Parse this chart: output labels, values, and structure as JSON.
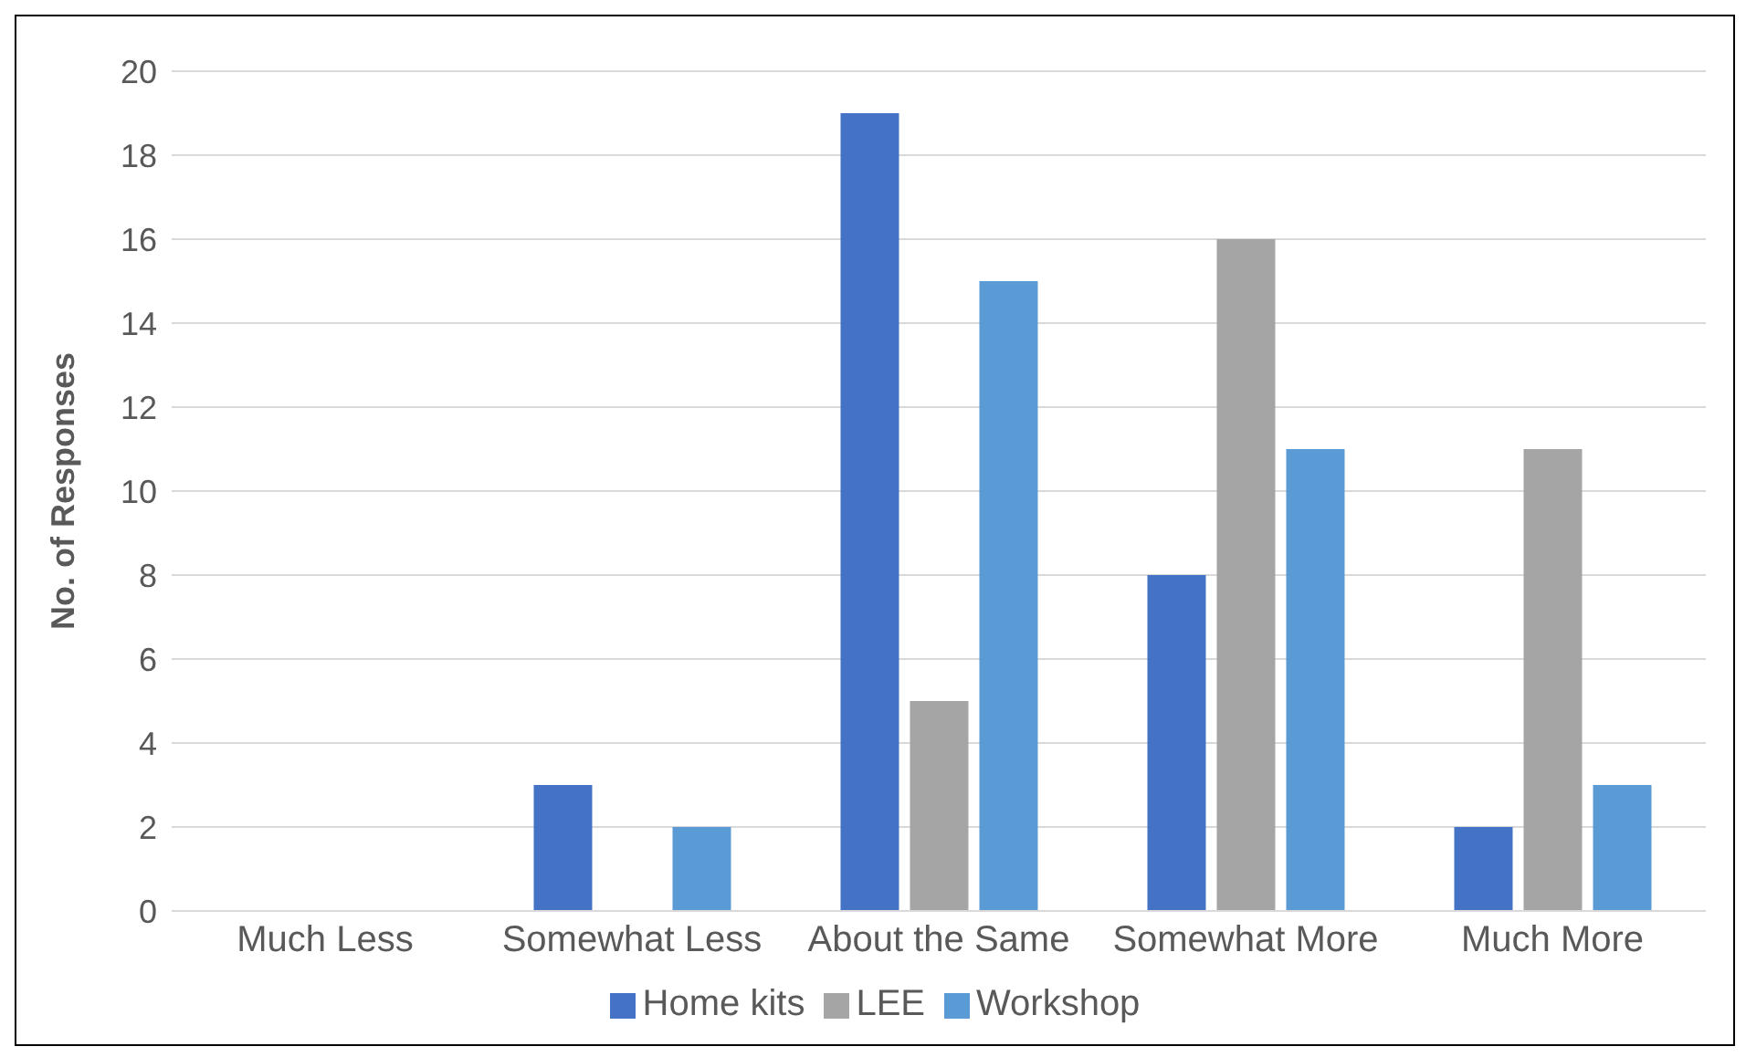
{
  "chart_data": {
    "type": "bar",
    "ylabel": "No. of Responses",
    "categories": [
      "Much Less",
      "Somewhat Less",
      "About the Same",
      "Somewhat More",
      "Much More"
    ],
    "series": [
      {
        "name": "Home kits",
        "color": "#4472c4",
        "values": [
          0,
          3,
          19,
          8,
          2
        ]
      },
      {
        "name": "LEE",
        "color": "#a5a5a5",
        "values": [
          0,
          0,
          5,
          16,
          11
        ]
      },
      {
        "name": "Workshop",
        "color": "#5b9bd5",
        "values": [
          0,
          2,
          15,
          11,
          3
        ]
      }
    ],
    "ylim": [
      0,
      20
    ],
    "yticks": [
      0,
      2,
      4,
      6,
      8,
      10,
      12,
      14,
      16,
      18,
      20
    ],
    "grid": "y",
    "legend": "bottom"
  }
}
